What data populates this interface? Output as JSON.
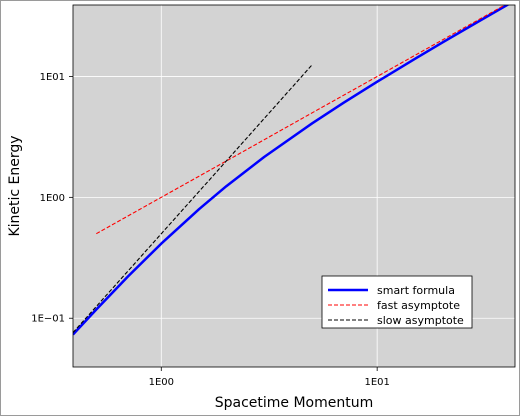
{
  "chart_data": {
    "type": "line",
    "xscale": "log",
    "yscale": "log",
    "xlim": [
      0.39,
      43.5
    ],
    "ylim": [
      0.0395,
      39
    ],
    "xlabel": "Spacetime Momentum",
    "ylabel": "Kinetic Energy",
    "grid": true,
    "background_color": "#d3d3d3",
    "legend_position": "lower-right",
    "x_ticks": [
      {
        "value": 1,
        "label": "1E00"
      },
      {
        "value": 10,
        "label": "1E01"
      }
    ],
    "y_ticks": [
      {
        "value": 0.1,
        "label": "1E−01"
      },
      {
        "value": 1,
        "label": "1E00"
      },
      {
        "value": 10,
        "label": "1E01"
      }
    ],
    "series": [
      {
        "name": "smart formula",
        "color": "#0000ff",
        "style": "solid",
        "x": [
          0.39,
          0.5,
          0.7,
          1,
          1.5,
          2,
          3,
          5,
          7,
          10,
          15,
          20,
          30,
          43.5
        ],
        "y": [
          0.0733,
          0.118,
          0.221,
          0.414,
          0.803,
          1.236,
          2.162,
          4.099,
          6.071,
          9.05,
          14.03,
          19.02,
          29.02,
          42.51
        ]
      },
      {
        "name": "fast asymptote",
        "color": "#ff0000",
        "style": "dashed",
        "x": [
          0.5,
          1,
          2,
          5,
          10,
          20,
          43.5
        ],
        "y": [
          0.5,
          1,
          2,
          5,
          10,
          20,
          43.5
        ]
      },
      {
        "name": "slow asymptote",
        "color": "#000000",
        "style": "dashed",
        "x": [
          0.39,
          0.5,
          1,
          2,
          3,
          5
        ],
        "y": [
          0.076,
          0.125,
          0.5,
          2,
          4.5,
          12.5
        ]
      }
    ]
  }
}
